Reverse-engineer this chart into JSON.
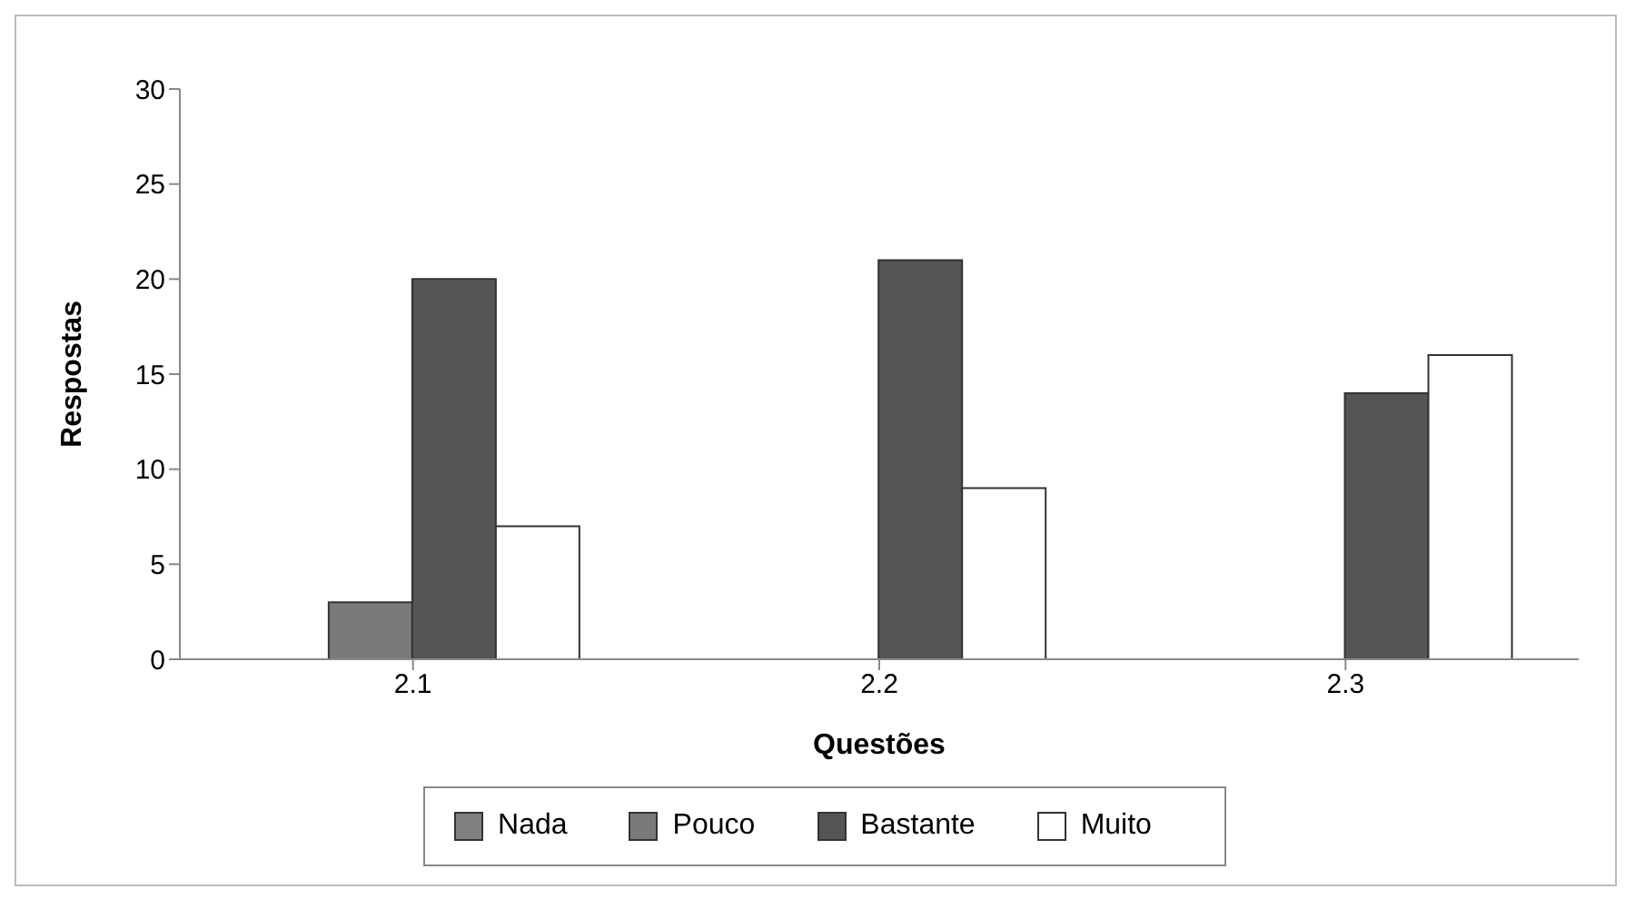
{
  "chart_data": {
    "type": "bar",
    "xlabel": "Questões",
    "ylabel": "Respostas",
    "categories": [
      "2.1",
      "2.2",
      "2.3"
    ],
    "series": [
      {
        "name": "Nada",
        "color": "#808080",
        "values": [
          0,
          0,
          0
        ]
      },
      {
        "name": "Pouco",
        "color": "#7a7a7a",
        "values": [
          3,
          0,
          0
        ]
      },
      {
        "name": "Bastante",
        "color": "#555555",
        "values": [
          20,
          21,
          14
        ]
      },
      {
        "name": "Muito",
        "color": "#ffffff",
        "values": [
          7,
          9,
          16
        ]
      }
    ],
    "ylim": [
      0,
      30
    ],
    "yticks": [
      0,
      5,
      10,
      15,
      20,
      25,
      30
    ],
    "grid": false,
    "legend": "bottom"
  }
}
